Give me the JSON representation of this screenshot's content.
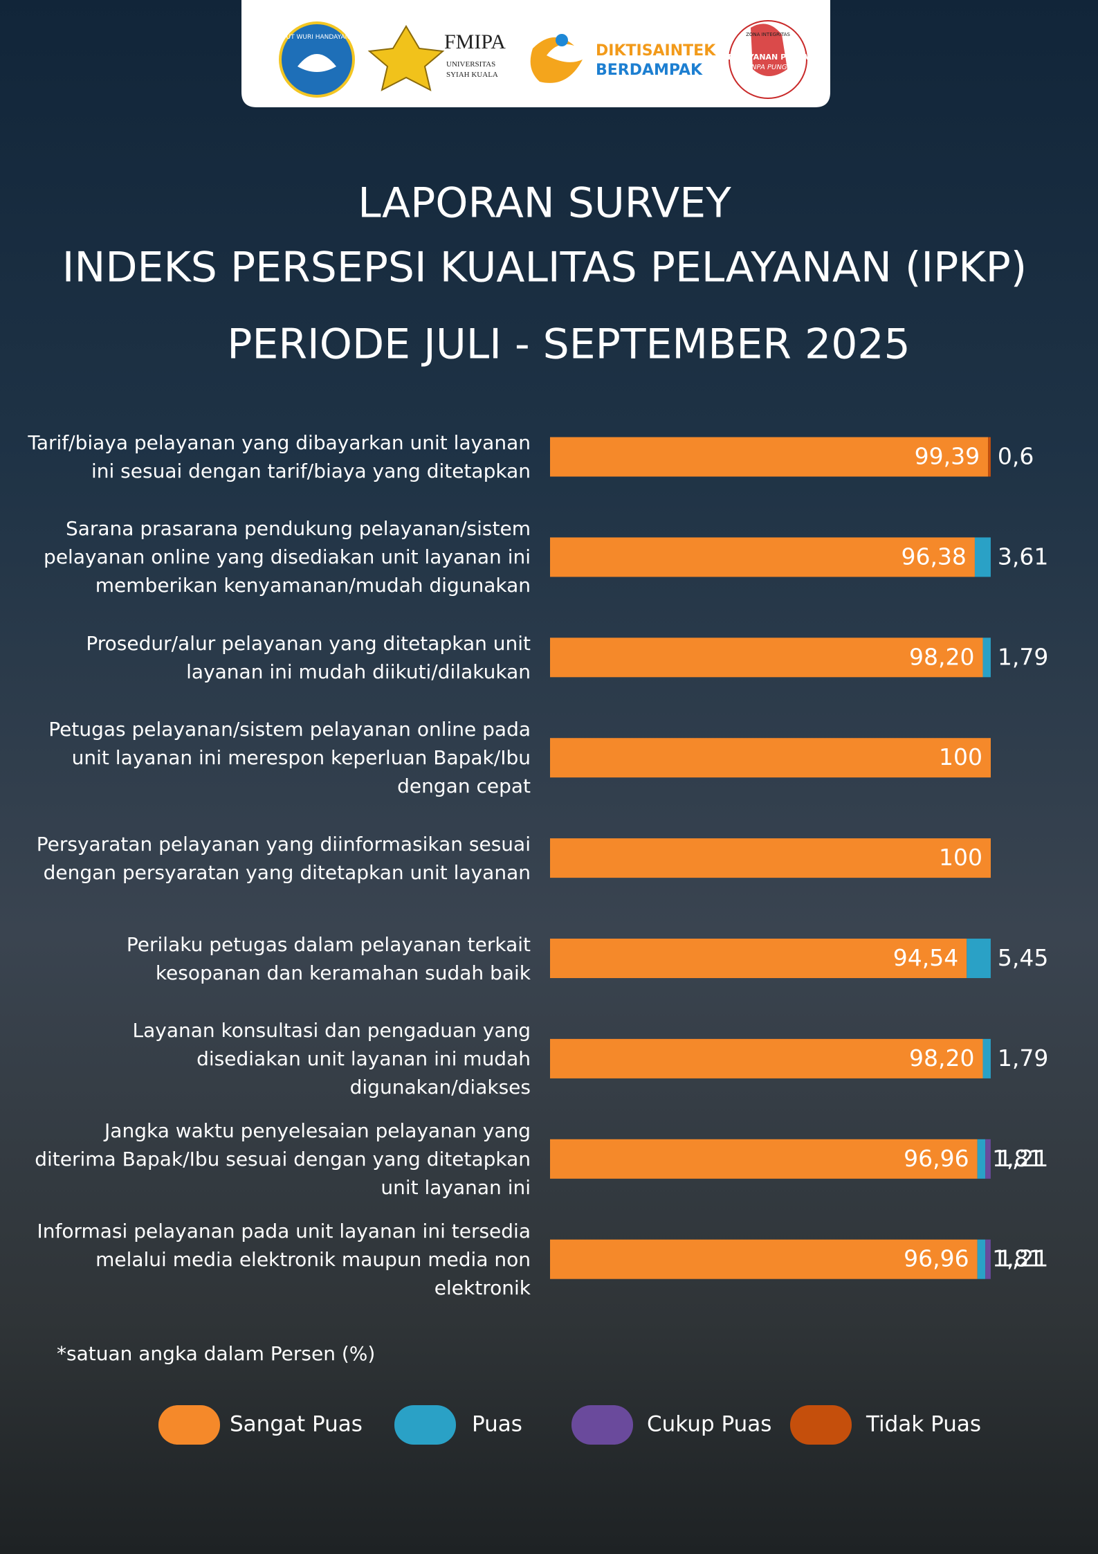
{
  "header": {
    "motto": "TUT WURI HANDAYANI",
    "faculty": "FMIPA",
    "university": [
      "UNIVERSITAS",
      "SYIAH KUALA"
    ],
    "campaign": [
      "DIKTISAINTEK",
      "BERDAMPAK"
    ],
    "zone": [
      "ZONA INTEGRITAS",
      "PELAYANAN PRIMA",
      "TANPA PUNGLI"
    ]
  },
  "chart_data": {
    "type": "stacked-bar",
    "orientation": "horizontal",
    "title": "LAPORAN SURVEY",
    "subtitle": "INDEKS PERSEPSI KUALITAS PELAYANAN (IPKP)",
    "period": "PERIODE JULI -  SEPTEMBER 2025",
    "note": "*satuan angka dalam Persen (%)",
    "categories": [
      "Tarif/biaya pelayanan yang dibayarkan unit layanan ini sesuai dengan tarif/biaya yang ditetapkan",
      "Sarana prasarana pendukung pelayanan/sistem pelayanan online yang disediakan unit layanan ini memberikan kenyamanan/mudah digunakan",
      "Prosedur/alur pelayanan yang ditetapkan unit layanan ini mudah diikuti/dilakukan",
      "Petugas pelayanan/sistem pelayanan online pada unit layanan ini merespon keperluan Bapak/Ibu dengan cepat",
      "Persyaratan pelayanan yang diinformasikan sesuai dengan persyaratan yang ditetapkan unit layanan",
      "Perilaku petugas dalam pelayanan terkait kesopanan dan keramahan sudah baik",
      "Layanan konsultasi dan pengaduan yang disediakan unit layanan ini mudah digunakan/diakses",
      "Jangka waktu penyelesaian pelayanan yang diterima Bapak/Ibu sesuai dengan yang ditetapkan unit layanan ini",
      "Informasi pelayanan pada unit layanan ini tersedia melalui media elektronik maupun media non elektronik"
    ],
    "series": [
      {
        "name": "Sangat Puas",
        "color": "#f5892a",
        "values": [
          99.39,
          96.38,
          98.2,
          100,
          100,
          94.54,
          98.2,
          96.96,
          96.96
        ],
        "value_labels": [
          "99,39",
          "96,38",
          "98,20",
          "100",
          "100",
          "94,54",
          "98,20",
          "96,96",
          "96,96"
        ]
      },
      {
        "name": "Puas",
        "color": "#2aa1c6",
        "values": [
          null,
          3.61,
          1.79,
          null,
          null,
          5.45,
          1.79,
          1.81,
          1.81
        ],
        "value_labels": [
          null,
          "3,61",
          "1,79",
          null,
          null,
          "5,45",
          "1,79",
          "1,81",
          "1,81"
        ]
      },
      {
        "name": "Cukup Puas",
        "color": "#6a4a9c",
        "values": [
          null,
          null,
          null,
          null,
          null,
          null,
          null,
          1.21,
          1.21
        ],
        "value_labels": [
          null,
          null,
          null,
          null,
          null,
          null,
          null,
          "1,21",
          "1,21"
        ]
      },
      {
        "name": "Tidak Puas",
        "color": "#c54f0c",
        "values": [
          0.6,
          null,
          null,
          null,
          null,
          null,
          null,
          null,
          null
        ],
        "value_labels": [
          "0,6",
          null,
          null,
          null,
          null,
          null,
          null,
          null,
          null
        ]
      }
    ],
    "xlim": [
      0,
      100
    ]
  }
}
